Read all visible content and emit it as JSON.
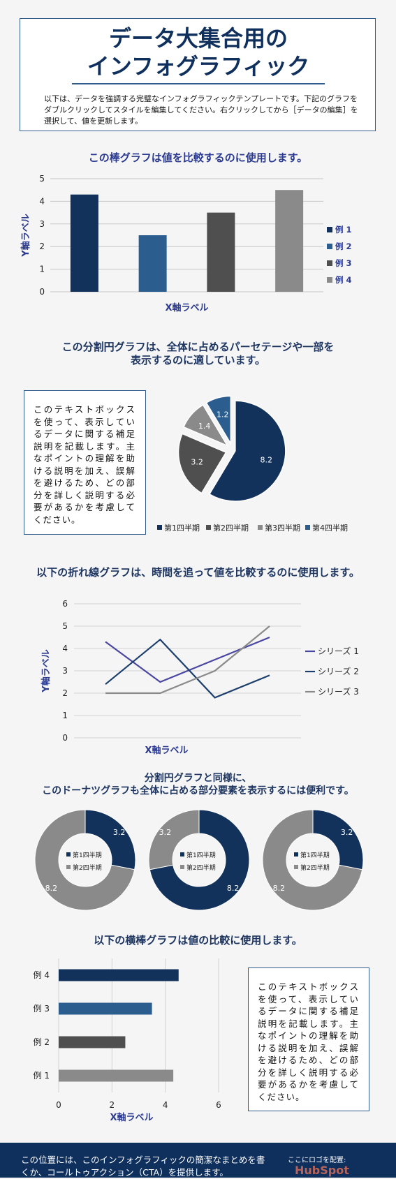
{
  "header": {
    "title": "データ大集合用の\nインフォグラフィック",
    "intro": "以下は、データを強調する完璧なインフォグラフィックテンプレートです。下記のグラフをダブルクリックしてスタイルを編集してください。右クリックしてから［データの編集］を選択して、値を更新します。"
  },
  "sections": {
    "bar_title": "この棒グラフは値を比較するのに使用します。",
    "pie_title": "この分割円グラフは、全体に占めるパーセテージや一部を\n表示するのに適しています。",
    "line_title": "以下の折れ線グラフは、時間を追って値を比較するのに使用します。",
    "donut_title": "分割円グラフと同様に、\nこのドーナツグラフも全体に占める部分要素を表示するには便利です。",
    "hbar_title": "以下の横棒グラフは値の比較に使用します。"
  },
  "notes": {
    "pie_note": "このテキストボックスを使って、表示しているデータに関する補足説明を記載します。主なポイントの理解を助ける説明を加え、誤解を避けるため、どの部分を詳しく説明する必要があるかを考慮してください。",
    "hbar_note": "このテキストボックスを使って、表示しているデータに関する補足説明を記載します。主なポイントの理解を助ける説明を加え、誤解を避けるため、どの部分を詳しく説明する必要があるかを考慮してください。"
  },
  "footer": {
    "text": "この位置には、このインフォグラフィックの簡潔なまとめを書くか、コールトゥアクション（CTA）を提供します。",
    "logo_label": "ここにロゴを配置:",
    "logo_text": "HubSpot"
  },
  "colors": {
    "navy": "#12325b",
    "blue": "#2b5d8f",
    "dark_gray": "#4f4f4f",
    "light_gray": "#8a8a8a",
    "purple_blue": "#4a47a3",
    "axis_label": "#2b3a8f"
  },
  "chart_data": [
    {
      "type": "bar",
      "title": "この棒グラフは値を比較するのに使用します。",
      "xlabel": "X軸ラベル",
      "ylabel": "Y軸ラベル",
      "ylim": [
        0,
        5
      ],
      "yticks": [
        "0",
        "1",
        "2",
        "3",
        "4",
        "5"
      ],
      "series": [
        {
          "name": "例 1",
          "value": 4.3,
          "color": "#12325b"
        },
        {
          "name": "例 2",
          "value": 2.5,
          "color": "#2b5d8f"
        },
        {
          "name": "例 3",
          "value": 3.5,
          "color": "#4f4f4f"
        },
        {
          "name": "例 4",
          "value": 4.5,
          "color": "#8a8a8a"
        }
      ],
      "legend": "right",
      "grid": true
    },
    {
      "type": "pie",
      "slices": [
        {
          "name": "第1四半期",
          "value": 8.2,
          "color": "#12325b",
          "label": "8.2"
        },
        {
          "name": "第2四半期",
          "value": 3.2,
          "color": "#4f4f4f",
          "label": "3.2"
        },
        {
          "name": "第3四半期",
          "value": 1.4,
          "color": "#8a8a8a",
          "label": "1.4"
        },
        {
          "name": "第4四半期",
          "value": 1.2,
          "color": "#2b5d8f",
          "label": "1.2"
        }
      ],
      "legend": "bottom"
    },
    {
      "type": "line",
      "xlabel": "X軸ラベル",
      "ylabel": "Y軸ラベル",
      "ylim": [
        0,
        6
      ],
      "yticks": [
        "0",
        "1",
        "2",
        "3",
        "4",
        "5",
        "6"
      ],
      "series": [
        {
          "name": "シリーズ 1",
          "values": [
            4.3,
            2.5,
            3.5,
            4.5
          ],
          "color": "#4a47a3"
        },
        {
          "name": "シリーズ 2",
          "values": [
            2.4,
            4.4,
            1.8,
            2.8
          ],
          "color": "#1d3f6e"
        },
        {
          "name": "シリーズ 3",
          "values": [
            2,
            2,
            3,
            5
          ],
          "color": "#8a8a8a"
        }
      ],
      "legend": "right",
      "grid": true
    },
    {
      "type": "pie",
      "subtype": "donut",
      "donuts": [
        {
          "slices": [
            {
              "name": "第1四半期",
              "value": 3.2,
              "label": "3.2",
              "color": "#12325b"
            },
            {
              "name": "第2四半期",
              "value": 8.2,
              "label": "8.2",
              "color": "#8a8a8a"
            }
          ]
        },
        {
          "slices": [
            {
              "name": "第1四半期",
              "value": 8.2,
              "label": "8.2",
              "color": "#12325b"
            },
            {
              "name": "第2四半期",
              "value": 3.2,
              "label": "3.2",
              "color": "#8a8a8a"
            }
          ]
        },
        {
          "slices": [
            {
              "name": "第1四半期",
              "value": 3.2,
              "label": "3.2",
              "color": "#12325b"
            },
            {
              "name": "第2四半期",
              "value": 8.2,
              "label": "8.2",
              "color": "#8a8a8a"
            }
          ]
        }
      ],
      "legend": "center"
    },
    {
      "type": "bar",
      "orientation": "horizontal",
      "xlabel": "X軸ラベル",
      "xlim": [
        0,
        6
      ],
      "xticks": [
        "0",
        "2",
        "4",
        "6"
      ],
      "categories": [
        "例 4",
        "例 3",
        "例 2",
        "例 1"
      ],
      "values": [
        4.5,
        3.5,
        2.5,
        4.3
      ],
      "colors": [
        "#12325b",
        "#2b5d8f",
        "#4f4f4f",
        "#8a8a8a"
      ],
      "grid": true
    }
  ]
}
